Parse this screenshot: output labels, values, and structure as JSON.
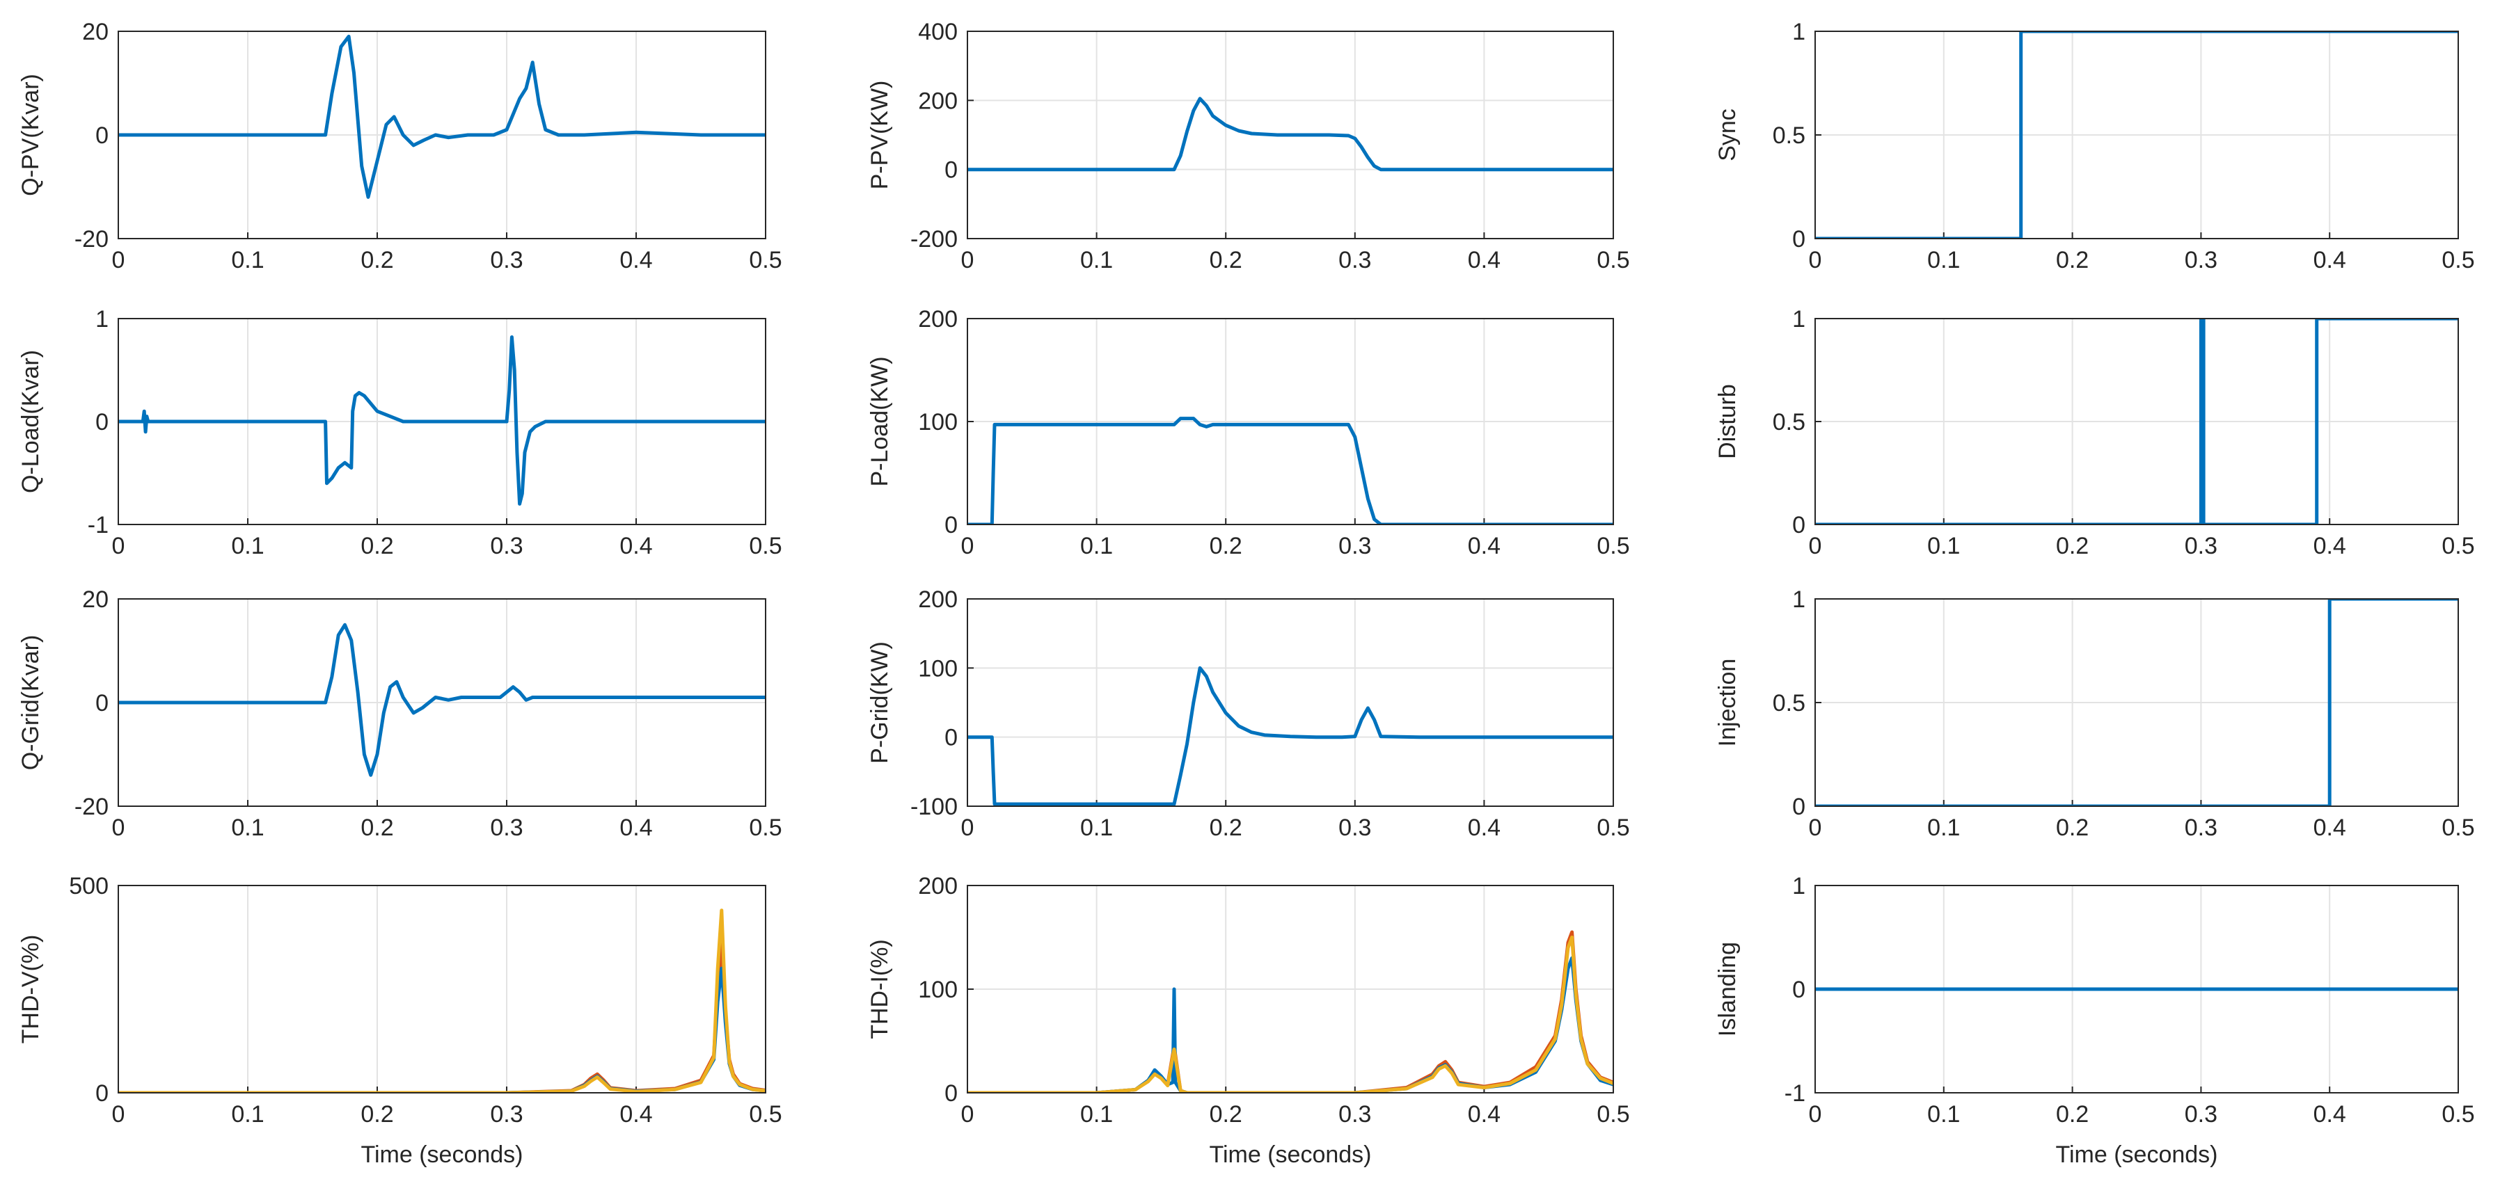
{
  "figure": {
    "background": "#ffffff",
    "axis_color": "#262626",
    "grid_color": "#e3e3e3"
  },
  "chart_data": [
    {
      "id": "q-pv",
      "type": "line",
      "ylabel": "Q-PV(Kvar)",
      "xlabel": "",
      "xlim": [
        0,
        0.5
      ],
      "ylim": [
        -20,
        20
      ],
      "xticks": [
        "0",
        "0.1",
        "0.2",
        "0.3",
        "0.4",
        "0.5"
      ],
      "yticks": [
        "-20",
        "0",
        "20"
      ],
      "series": [
        {
          "name": "Q-PV",
          "color": "#0072bd",
          "x": [
            0,
            0.16,
            0.165,
            0.172,
            0.178,
            0.182,
            0.188,
            0.193,
            0.2,
            0.207,
            0.213,
            0.22,
            0.228,
            0.236,
            0.245,
            0.255,
            0.27,
            0.29,
            0.3,
            0.305,
            0.31,
            0.315,
            0.32,
            0.325,
            0.33,
            0.34,
            0.36,
            0.4,
            0.45,
            0.5
          ],
          "y": [
            0,
            0,
            8,
            17,
            19,
            12,
            -6,
            -12,
            -5,
            2,
            3.5,
            0,
            -2,
            -1,
            0,
            -0.5,
            0,
            0,
            1,
            4,
            7,
            9,
            14,
            6,
            1,
            0,
            0,
            0.5,
            0,
            0
          ]
        }
      ]
    },
    {
      "id": "p-pv",
      "type": "line",
      "ylabel": "P-PV(KW)",
      "xlabel": "",
      "xlim": [
        0,
        0.5
      ],
      "ylim": [
        -200,
        400
      ],
      "xticks": [
        "0",
        "0.1",
        "0.2",
        "0.3",
        "0.4",
        "0.5"
      ],
      "yticks": [
        "-200",
        "0",
        "200",
        "400"
      ],
      "series": [
        {
          "name": "P-PV",
          "color": "#0072bd",
          "x": [
            0,
            0.16,
            0.165,
            0.17,
            0.175,
            0.18,
            0.185,
            0.19,
            0.2,
            0.21,
            0.22,
            0.24,
            0.26,
            0.28,
            0.295,
            0.3,
            0.305,
            0.31,
            0.315,
            0.32,
            0.35,
            0.4,
            0.5
          ],
          "y": [
            0,
            0,
            40,
            110,
            170,
            205,
            185,
            155,
            128,
            112,
            104,
            100,
            100,
            100,
            98,
            90,
            65,
            35,
            10,
            0,
            0,
            0,
            0
          ]
        }
      ]
    },
    {
      "id": "sync",
      "type": "line",
      "ylabel": "Sync",
      "xlabel": "",
      "xlim": [
        0,
        0.5
      ],
      "ylim": [
        0,
        1
      ],
      "xticks": [
        "0",
        "0.1",
        "0.2",
        "0.3",
        "0.4",
        "0.5"
      ],
      "yticks": [
        "0",
        "0.5",
        "1"
      ],
      "series": [
        {
          "name": "Sync",
          "color": "#0072bd",
          "x": [
            0,
            0.16,
            0.16,
            0.5
          ],
          "y": [
            0,
            0,
            1,
            1
          ]
        }
      ]
    },
    {
      "id": "q-load",
      "type": "line",
      "ylabel": "Q-Load(Kvar)",
      "xlabel": "",
      "xlim": [
        0,
        0.5
      ],
      "ylim": [
        -1,
        1
      ],
      "xticks": [
        "0",
        "0.1",
        "0.2",
        "0.3",
        "0.4",
        "0.5"
      ],
      "yticks": [
        "-1",
        "0",
        "1"
      ],
      "series": [
        {
          "name": "Q-Load",
          "color": "#0072bd",
          "x": [
            0,
            0.019,
            0.02,
            0.021,
            0.022,
            0.023,
            0.16,
            0.161,
            0.165,
            0.17,
            0.175,
            0.18,
            0.181,
            0.183,
            0.186,
            0.19,
            0.2,
            0.21,
            0.22,
            0.24,
            0.26,
            0.28,
            0.3,
            0.302,
            0.304,
            0.306,
            0.308,
            0.31,
            0.312,
            0.314,
            0.318,
            0.322,
            0.33,
            0.35,
            0.4,
            0.45,
            0.5
          ],
          "y": [
            0,
            0,
            0.1,
            -0.1,
            0.05,
            0,
            0,
            -0.6,
            -0.55,
            -0.45,
            -0.4,
            -0.45,
            0.1,
            0.25,
            0.28,
            0.25,
            0.1,
            0.05,
            0,
            0,
            0,
            0,
            0,
            0.3,
            0.82,
            0.5,
            -0.3,
            -0.8,
            -0.7,
            -0.3,
            -0.1,
            -0.05,
            0,
            0,
            0,
            0,
            0
          ]
        }
      ]
    },
    {
      "id": "p-load",
      "type": "line",
      "ylabel": "P-Load(KW)",
      "xlabel": "",
      "xlim": [
        0,
        0.5
      ],
      "ylim": [
        0,
        200
      ],
      "xticks": [
        "0",
        "0.1",
        "0.2",
        "0.3",
        "0.4",
        "0.5"
      ],
      "yticks": [
        "0",
        "100",
        "200"
      ],
      "series": [
        {
          "name": "P-Load",
          "color": "#0072bd",
          "x": [
            0,
            0.019,
            0.02,
            0.021,
            0.16,
            0.165,
            0.175,
            0.18,
            0.185,
            0.19,
            0.295,
            0.3,
            0.305,
            0.31,
            0.315,
            0.32,
            0.4,
            0.5
          ],
          "y": [
            0,
            0,
            50,
            97,
            97,
            103,
            103,
            97,
            95,
            97,
            97,
            85,
            55,
            25,
            5,
            0,
            0,
            0
          ]
        }
      ]
    },
    {
      "id": "disturb",
      "type": "line",
      "ylabel": "Disturb",
      "xlabel": "",
      "xlim": [
        0,
        0.5
      ],
      "ylim": [
        0,
        1
      ],
      "xticks": [
        "0",
        "0.1",
        "0.2",
        "0.3",
        "0.4",
        "0.5"
      ],
      "yticks": [
        "0",
        "0.5",
        "1"
      ],
      "series": [
        {
          "name": "Disturb",
          "color": "#0072bd",
          "x": [
            0,
            0.3,
            0.3,
            0.302,
            0.302,
            0.39,
            0.39,
            0.5
          ],
          "y": [
            0,
            0,
            1,
            1,
            0,
            0,
            1,
            1
          ]
        }
      ]
    },
    {
      "id": "q-grid",
      "type": "line",
      "ylabel": "Q-Grid(Kvar)",
      "xlabel": "",
      "xlim": [
        0,
        0.5
      ],
      "ylim": [
        -20,
        20
      ],
      "xticks": [
        "0",
        "0.1",
        "0.2",
        "0.3",
        "0.4",
        "0.5"
      ],
      "yticks": [
        "-20",
        "0",
        "20"
      ],
      "series": [
        {
          "name": "Q-Grid",
          "color": "#0072bd",
          "x": [
            0,
            0.16,
            0.165,
            0.17,
            0.175,
            0.18,
            0.185,
            0.19,
            0.195,
            0.2,
            0.205,
            0.21,
            0.215,
            0.22,
            0.228,
            0.235,
            0.245,
            0.255,
            0.265,
            0.28,
            0.295,
            0.3,
            0.305,
            0.31,
            0.315,
            0.32,
            0.35,
            0.4,
            0.5
          ],
          "y": [
            0,
            0,
            5,
            13,
            15,
            12,
            2,
            -10,
            -14,
            -10,
            -2,
            3,
            4,
            1,
            -2,
            -1,
            1,
            0.5,
            1,
            1,
            1,
            2,
            3,
            2,
            0.5,
            1,
            1,
            1,
            1
          ]
        }
      ]
    },
    {
      "id": "p-grid",
      "type": "line",
      "ylabel": "P-Grid(KW)",
      "xlabel": "",
      "xlim": [
        0,
        0.5
      ],
      "ylim": [
        -100,
        200
      ],
      "xticks": [
        "0",
        "0.1",
        "0.2",
        "0.3",
        "0.4",
        "0.5"
      ],
      "yticks": [
        "-100",
        "0",
        "100",
        "200"
      ],
      "series": [
        {
          "name": "P-Grid",
          "color": "#0072bd",
          "x": [
            0,
            0.019,
            0.02,
            0.021,
            0.16,
            0.165,
            0.17,
            0.175,
            0.18,
            0.185,
            0.19,
            0.2,
            0.21,
            0.22,
            0.23,
            0.25,
            0.27,
            0.29,
            0.3,
            0.305,
            0.31,
            0.315,
            0.32,
            0.35,
            0.4,
            0.5
          ],
          "y": [
            0,
            0,
            -50,
            -97,
            -97,
            -55,
            -10,
            50,
            100,
            88,
            65,
            35,
            16,
            7,
            3,
            1,
            0,
            0,
            1,
            25,
            42,
            25,
            1,
            0,
            0,
            0
          ]
        }
      ]
    },
    {
      "id": "injection",
      "type": "line",
      "ylabel": "Injection",
      "xlabel": "",
      "xlim": [
        0,
        0.5
      ],
      "ylim": [
        0,
        1
      ],
      "xticks": [
        "0",
        "0.1",
        "0.2",
        "0.3",
        "0.4",
        "0.5"
      ],
      "yticks": [
        "0",
        "0.5",
        "1"
      ],
      "series": [
        {
          "name": "Injection",
          "color": "#0072bd",
          "x": [
            0,
            0.4,
            0.4,
            0.5
          ],
          "y": [
            0,
            0,
            1,
            1
          ]
        }
      ]
    },
    {
      "id": "thd-v",
      "type": "line",
      "ylabel": "THD-V(%)",
      "xlabel": "Time (seconds)",
      "xlim": [
        0,
        0.5
      ],
      "ylim": [
        0,
        500
      ],
      "xticks": [
        "0",
        "0.1",
        "0.2",
        "0.3",
        "0.4",
        "0.5"
      ],
      "yticks": [
        "0",
        "500"
      ],
      "series": [
        {
          "name": "THD-V a",
          "color": "#d95319",
          "x": [
            0,
            0.3,
            0.35,
            0.36,
            0.365,
            0.37,
            0.375,
            0.38,
            0.4,
            0.43,
            0.45,
            0.46,
            0.463,
            0.466,
            0.469,
            0.472,
            0.475,
            0.48,
            0.49,
            0.5
          ],
          "y": [
            0,
            0,
            5,
            20,
            35,
            45,
            30,
            12,
            5,
            10,
            30,
            90,
            250,
            360,
            190,
            80,
            45,
            22,
            10,
            6
          ]
        },
        {
          "name": "THD-V b",
          "color": "#0072bd",
          "x": [
            0,
            0.3,
            0.35,
            0.36,
            0.365,
            0.37,
            0.375,
            0.38,
            0.4,
            0.43,
            0.45,
            0.46,
            0.463,
            0.466,
            0.469,
            0.472,
            0.475,
            0.48,
            0.49,
            0.5
          ],
          "y": [
            0,
            0,
            4,
            18,
            30,
            40,
            26,
            10,
            4,
            8,
            26,
            80,
            220,
            300,
            170,
            70,
            40,
            18,
            8,
            5
          ]
        },
        {
          "name": "THD-V c",
          "color": "#edb120",
          "x": [
            0,
            0.3,
            0.35,
            0.36,
            0.365,
            0.37,
            0.375,
            0.38,
            0.4,
            0.43,
            0.45,
            0.46,
            0.463,
            0.466,
            0.469,
            0.472,
            0.475,
            0.48,
            0.49,
            0.5
          ],
          "y": [
            0,
            0,
            4,
            16,
            28,
            38,
            24,
            9,
            3,
            8,
            25,
            85,
            300,
            440,
            210,
            75,
            40,
            20,
            8,
            5
          ]
        }
      ]
    },
    {
      "id": "thd-i",
      "type": "line",
      "ylabel": "THD-I(%)",
      "xlabel": "Time (seconds)",
      "xlim": [
        0,
        0.5
      ],
      "ylim": [
        0,
        200
      ],
      "xticks": [
        "0",
        "0.1",
        "0.2",
        "0.3",
        "0.4",
        "0.5"
      ],
      "yticks": [
        "0",
        "100",
        "200"
      ],
      "series": [
        {
          "name": "THD-I a",
          "color": "#d95319",
          "x": [
            0,
            0.1,
            0.13,
            0.14,
            0.145,
            0.15,
            0.155,
            0.16,
            0.165,
            0.17,
            0.2,
            0.3,
            0.34,
            0.36,
            0.365,
            0.37,
            0.375,
            0.38,
            0.4,
            0.42,
            0.44,
            0.455,
            0.46,
            0.465,
            0.468,
            0.471,
            0.475,
            0.48,
            0.49,
            0.5
          ],
          "y": [
            0,
            0,
            3,
            12,
            20,
            15,
            8,
            45,
            2,
            0,
            0,
            0,
            5,
            18,
            26,
            30,
            22,
            10,
            6,
            10,
            25,
            55,
            90,
            145,
            155,
            100,
            55,
            30,
            15,
            10
          ]
        },
        {
          "name": "THD-I b",
          "color": "#0072bd",
          "x": [
            0,
            0.1,
            0.13,
            0.14,
            0.145,
            0.15,
            0.155,
            0.159,
            0.16,
            0.161,
            0.165,
            0.17,
            0.2,
            0.3,
            0.34,
            0.36,
            0.365,
            0.37,
            0.375,
            0.38,
            0.4,
            0.42,
            0.44,
            0.455,
            0.46,
            0.465,
            0.468,
            0.471,
            0.475,
            0.48,
            0.49,
            0.5
          ],
          "y": [
            0,
            0,
            3,
            12,
            22,
            16,
            8,
            10,
            100,
            10,
            2,
            0,
            0,
            0,
            4,
            16,
            24,
            27,
            20,
            9,
            5,
            8,
            20,
            50,
            80,
            120,
            130,
            90,
            50,
            28,
            12,
            8
          ]
        },
        {
          "name": "THD-I c",
          "color": "#edb120",
          "x": [
            0,
            0.1,
            0.13,
            0.14,
            0.145,
            0.15,
            0.155,
            0.16,
            0.165,
            0.17,
            0.2,
            0.3,
            0.34,
            0.36,
            0.365,
            0.37,
            0.375,
            0.38,
            0.4,
            0.42,
            0.44,
            0.455,
            0.46,
            0.465,
            0.468,
            0.471,
            0.475,
            0.48,
            0.49,
            0.5
          ],
          "y": [
            0,
            0,
            3,
            11,
            18,
            14,
            7,
            42,
            2,
            0,
            0,
            0,
            4,
            15,
            23,
            26,
            19,
            8,
            5,
            9,
            22,
            52,
            85,
            140,
            150,
            95,
            52,
            28,
            14,
            9
          ]
        }
      ]
    },
    {
      "id": "islanding",
      "type": "line",
      "ylabel": "Islanding",
      "xlabel": "Time (seconds)",
      "xlim": [
        0,
        0.5
      ],
      "ylim": [
        -1,
        1
      ],
      "xticks": [
        "0",
        "0.1",
        "0.2",
        "0.3",
        "0.4",
        "0.5"
      ],
      "yticks": [
        "-1",
        "0",
        "1"
      ],
      "series": [
        {
          "name": "Islanding",
          "color": "#0072bd",
          "x": [
            0,
            0.5
          ],
          "y": [
            0,
            0
          ]
        }
      ]
    }
  ]
}
